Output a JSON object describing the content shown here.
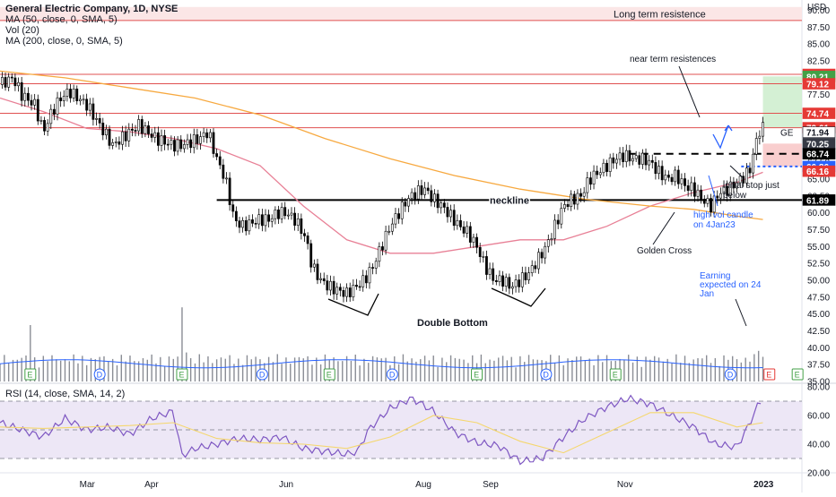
{
  "header": {
    "title": "General Electric Company, 1D, NYSE",
    "ma50": "MA (50, close, 0, SMA, 5)",
    "vol": "Vol (20)",
    "ma200": "MA (200, close, 0, SMA, 5)",
    "currency": "USD"
  },
  "rsi_header": "RSI (14, close, SMA, 14, 2)",
  "colors": {
    "price": "#131722",
    "ma50": "#e88096",
    "ma200": "#f7a940",
    "volume": "#8a8d95",
    "vol_ma": "#2962ff",
    "rsi": "#7e57c2",
    "rsi_ma": "#f5d76e",
    "rsi_band": "#ede7f6",
    "resist_line": "#e05050",
    "long_term_band": "#fbe3e3",
    "target_zone": "#cfeecf",
    "stop_zone": "#f8c9c9",
    "annotation_blue": "#2962ff"
  },
  "chart_data": [
    {
      "type": "line",
      "title": "General Electric Company, 1D, NYSE",
      "y_unit": "USD",
      "ylim": [
        35,
        91
      ],
      "y_ticks": [
        35.0,
        37.5,
        40.0,
        42.5,
        45.0,
        47.5,
        50.0,
        52.5,
        55.0,
        57.5,
        60.0,
        62.5,
        65.0,
        67.5,
        70.0,
        72.5,
        75.0,
        77.5,
        80.0,
        82.5,
        85.0,
        87.5,
        90.0
      ],
      "x_ticks": [
        "Mar",
        "Apr",
        "Jun",
        "Aug",
        "Sep",
        "Nov",
        "2023"
      ],
      "x_tick_days": [
        40,
        70,
        132,
        195,
        226,
        288,
        351
      ],
      "xlim": [
        0,
        370
      ],
      "series": [
        {
          "name": "GE",
          "kind": "price",
          "x": [
            0,
            6,
            10,
            16,
            20,
            24,
            28,
            32,
            36,
            40,
            44,
            48,
            52,
            56,
            60,
            64,
            68,
            72,
            76,
            80,
            84,
            88,
            92,
            96,
            100,
            104,
            106,
            108,
            112,
            116,
            120,
            124,
            128,
            132,
            136,
            140,
            142,
            144,
            148,
            152,
            156,
            160,
            164,
            168,
            172,
            176,
            180,
            184,
            188,
            192,
            196,
            200,
            204,
            208,
            212,
            216,
            220,
            224,
            228,
            232,
            236,
            240,
            244,
            248,
            252,
            256,
            260,
            264,
            268,
            272,
            276,
            280,
            284,
            288,
            292,
            296,
            300,
            304,
            308,
            312,
            316,
            320,
            324,
            328,
            332,
            336,
            340,
            344,
            346,
            350,
            352
          ],
          "values": [
            79,
            80,
            77.5,
            76,
            72,
            75,
            77,
            78,
            77,
            76,
            74,
            72,
            70,
            71,
            72,
            73,
            72,
            71,
            70.5,
            70,
            70,
            70.5,
            71,
            72,
            68,
            65,
            62,
            59,
            58,
            58.5,
            59,
            59,
            60,
            60,
            59,
            57,
            55,
            52,
            50,
            49,
            48.5,
            48,
            49,
            50,
            52,
            55,
            58,
            60,
            62,
            63,
            63.5,
            62,
            61,
            59.5,
            58,
            57,
            55,
            52,
            50,
            50,
            49,
            50,
            51,
            53,
            55,
            58,
            61,
            62,
            62.5,
            65,
            66,
            67,
            68,
            68.5,
            68,
            68,
            67.5,
            66,
            65,
            65.5,
            64,
            63.5,
            62,
            61,
            63,
            63.5,
            64.5,
            65.5,
            66.5,
            72,
            72.5
          ]
        },
        {
          "name": "MA 50",
          "x": [
            0,
            20,
            40,
            60,
            80,
            100,
            120,
            140,
            160,
            180,
            200,
            220,
            240,
            260,
            280,
            300,
            320,
            340,
            352
          ],
          "values": [
            77,
            75,
            72.5,
            72,
            71,
            69.5,
            67,
            61,
            56,
            54,
            54,
            55,
            56,
            56,
            58,
            61,
            63,
            64.5,
            66
          ]
        },
        {
          "name": "MA 200",
          "x": [
            0,
            30,
            60,
            90,
            120,
            150,
            180,
            210,
            240,
            270,
            300,
            320,
            340,
            352
          ],
          "values": [
            81,
            80,
            78.5,
            77,
            74.5,
            71,
            68,
            65.5,
            63.5,
            62,
            61,
            60.5,
            59.5,
            59
          ]
        }
      ],
      "price_labels": [
        "80.51",
        "80.21",
        "79.12",
        "74.74",
        "72.61",
        "71.94",
        "70.25",
        "68.74",
        "66.86",
        "66.16",
        "61.89"
      ],
      "price_label_values": [
        80.51,
        80.21,
        79.12,
        74.74,
        72.61,
        71.94,
        70.25,
        68.74,
        66.86,
        66.16,
        61.89
      ],
      "horizontal_lines": [
        {
          "label": "neckline",
          "value": 61.89,
          "style": "solid"
        },
        {
          "label": "",
          "value": 80.51,
          "style": "resistance"
        },
        {
          "label": "",
          "value": 79.12,
          "style": "resistance"
        },
        {
          "label": "",
          "value": 74.74,
          "style": "resistance"
        },
        {
          "label": "",
          "value": 72.61,
          "style": "resistance"
        },
        {
          "label": "",
          "value": 68.74,
          "style": "dashed"
        },
        {
          "label": "",
          "value": 66.86,
          "style": "dotted-blue"
        }
      ],
      "zones": [
        {
          "label": "Long term resistence",
          "from": 88.5,
          "to": 90.5,
          "color": "long_term_band"
        },
        {
          "label": "",
          "from": 72.61,
          "to": 80.21,
          "color": "target_zone"
        },
        {
          "label": "",
          "from": 66.86,
          "to": 70.25,
          "color": "stop_zone"
        }
      ],
      "annotations": {
        "long_term": "Long term resistence",
        "near_term": "near term resistences",
        "neckline": "neckline",
        "double_bottom": "Double Bottom",
        "golden_cross": "Golden Cross",
        "high_vol_1": "high vol candle",
        "high_vol_2": "on 4Jan23",
        "stop_1": "initial stop just",
        "stop_2": "below",
        "earning_1": "Earning",
        "earning_2": "expected on 24",
        "earning_3": "Jan",
        "ticker": "GE"
      },
      "event_badges": [
        "E",
        "D",
        "E",
        "D",
        "E",
        "D",
        "E",
        "D",
        "E",
        "D",
        "E",
        "E"
      ],
      "event_badge_days": [
        14,
        46,
        84,
        121,
        152,
        181,
        220,
        252,
        284,
        337,
        355,
        368
      ]
    },
    {
      "type": "bar",
      "title": "Vol (20)",
      "note": "relative volume bars",
      "x_days_step": 2,
      "spikes": [
        {
          "day": 14,
          "value": 3.5
        },
        {
          "day": 84,
          "value": 4.6
        },
        {
          "day": 86,
          "value": 1.8
        },
        {
          "day": 165,
          "value": 2.6
        },
        {
          "day": 285,
          "value": 1.1
        },
        {
          "day": 350,
          "value": 1.9
        }
      ]
    },
    {
      "type": "line",
      "title": "RSI (14, close, SMA, 14, 2)",
      "ylim": [
        20,
        80
      ],
      "y_ticks": [
        20.0,
        40.0,
        60.0,
        80.0
      ],
      "band": [
        30,
        70
      ],
      "series": [
        {
          "name": "RSI",
          "x": [
            0,
            10,
            20,
            30,
            40,
            50,
            60,
            70,
            80,
            84,
            90,
            100,
            110,
            120,
            130,
            140,
            150,
            160,
            165,
            170,
            180,
            190,
            200,
            210,
            220,
            230,
            240,
            250,
            260,
            270,
            280,
            290,
            300,
            310,
            320,
            330,
            340,
            345,
            350,
            352
          ],
          "values": [
            55,
            50,
            45,
            58,
            50,
            52,
            47,
            58,
            63,
            32,
            37,
            40,
            44,
            43,
            45,
            37,
            35,
            33,
            35,
            50,
            65,
            72,
            63,
            48,
            41,
            39,
            28,
            30,
            45,
            58,
            66,
            72,
            68,
            60,
            52,
            40,
            38,
            52,
            68,
            72
          ]
        },
        {
          "name": "RSI MA",
          "x": [
            0,
            20,
            40,
            60,
            80,
            100,
            120,
            140,
            160,
            180,
            200,
            220,
            240,
            260,
            280,
            300,
            320,
            340,
            352
          ],
          "values": [
            52,
            51,
            52,
            53,
            55,
            44,
            41,
            40,
            37,
            45,
            60,
            55,
            42,
            34,
            48,
            62,
            62,
            52,
            55
          ]
        }
      ]
    }
  ]
}
